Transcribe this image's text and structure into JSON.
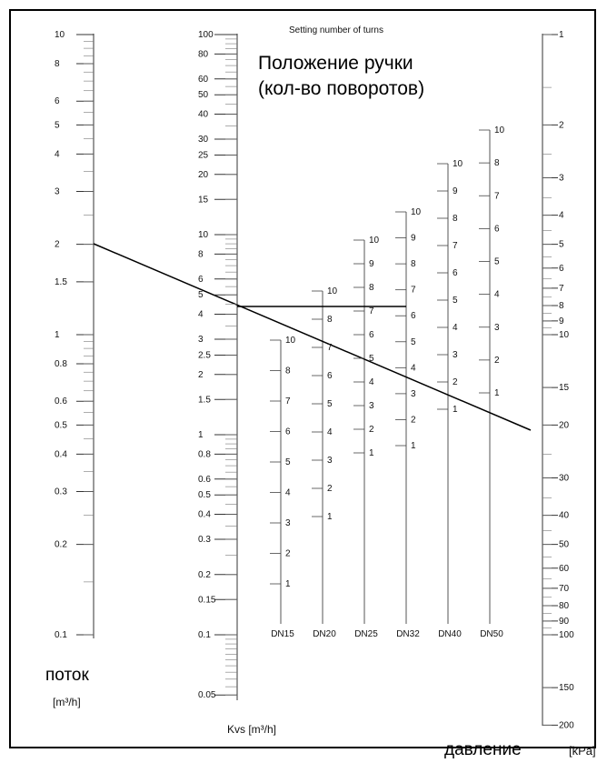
{
  "titles": {
    "setting_en": "Setting number of turns",
    "setting_ru_line1": "Положение ручки",
    "setting_ru_line2": "(кол-во поворотов)"
  },
  "flow": {
    "label": "поток",
    "unit": "[m³/h]",
    "ticks": [
      "10",
      "8",
      "6",
      "5",
      "4",
      "3",
      "2",
      "1.5",
      "1",
      "0.8",
      "0.6",
      "0.5",
      "0.4",
      "0.3",
      "0.2",
      "0.1"
    ]
  },
  "kvs": {
    "label": "Kvs [m³/h]",
    "ticks": [
      "100",
      "80",
      "60",
      "50",
      "40",
      "30",
      "25",
      "20",
      "15",
      "10",
      "8",
      "6",
      "5",
      "4",
      "3",
      "2.5",
      "2",
      "1.5",
      "1",
      "0.8",
      "0.6",
      "0.5",
      "0.4",
      "0.3",
      "0.2",
      "0.15",
      "0.1",
      "0.05"
    ]
  },
  "pressure": {
    "label": "давление",
    "unit": "[kPa]",
    "ticks": [
      "1",
      "2",
      "3",
      "4",
      "5",
      "6",
      "7",
      "8",
      "9",
      "10",
      "15",
      "20",
      "30",
      "40",
      "50",
      "60",
      "70",
      "80",
      "90",
      "100",
      "150",
      "200"
    ]
  },
  "valves": [
    {
      "name": "DN15",
      "turns": [
        "10",
        "8",
        "7",
        "6",
        "5",
        "4",
        "3",
        "2",
        "1"
      ]
    },
    {
      "name": "DN20",
      "turns": [
        "10",
        "8",
        "7",
        "6",
        "5",
        "4",
        "3",
        "2",
        "1"
      ]
    },
    {
      "name": "DN25",
      "turns": [
        "10",
        "9",
        "8",
        "7",
        "6",
        "5",
        "4",
        "3",
        "2",
        "1"
      ]
    },
    {
      "name": "DN32",
      "turns": [
        "10",
        "9",
        "8",
        "7",
        "6",
        "5",
        "4",
        "3",
        "2",
        "1"
      ]
    },
    {
      "name": "DN40",
      "turns": [
        "10",
        "9",
        "8",
        "7",
        "6",
        "5",
        "4",
        "3",
        "2",
        "1"
      ]
    },
    {
      "name": "DN50",
      "turns": [
        "10",
        "8",
        "7",
        "6",
        "5",
        "4",
        "3",
        "2",
        "1"
      ]
    }
  ]
}
